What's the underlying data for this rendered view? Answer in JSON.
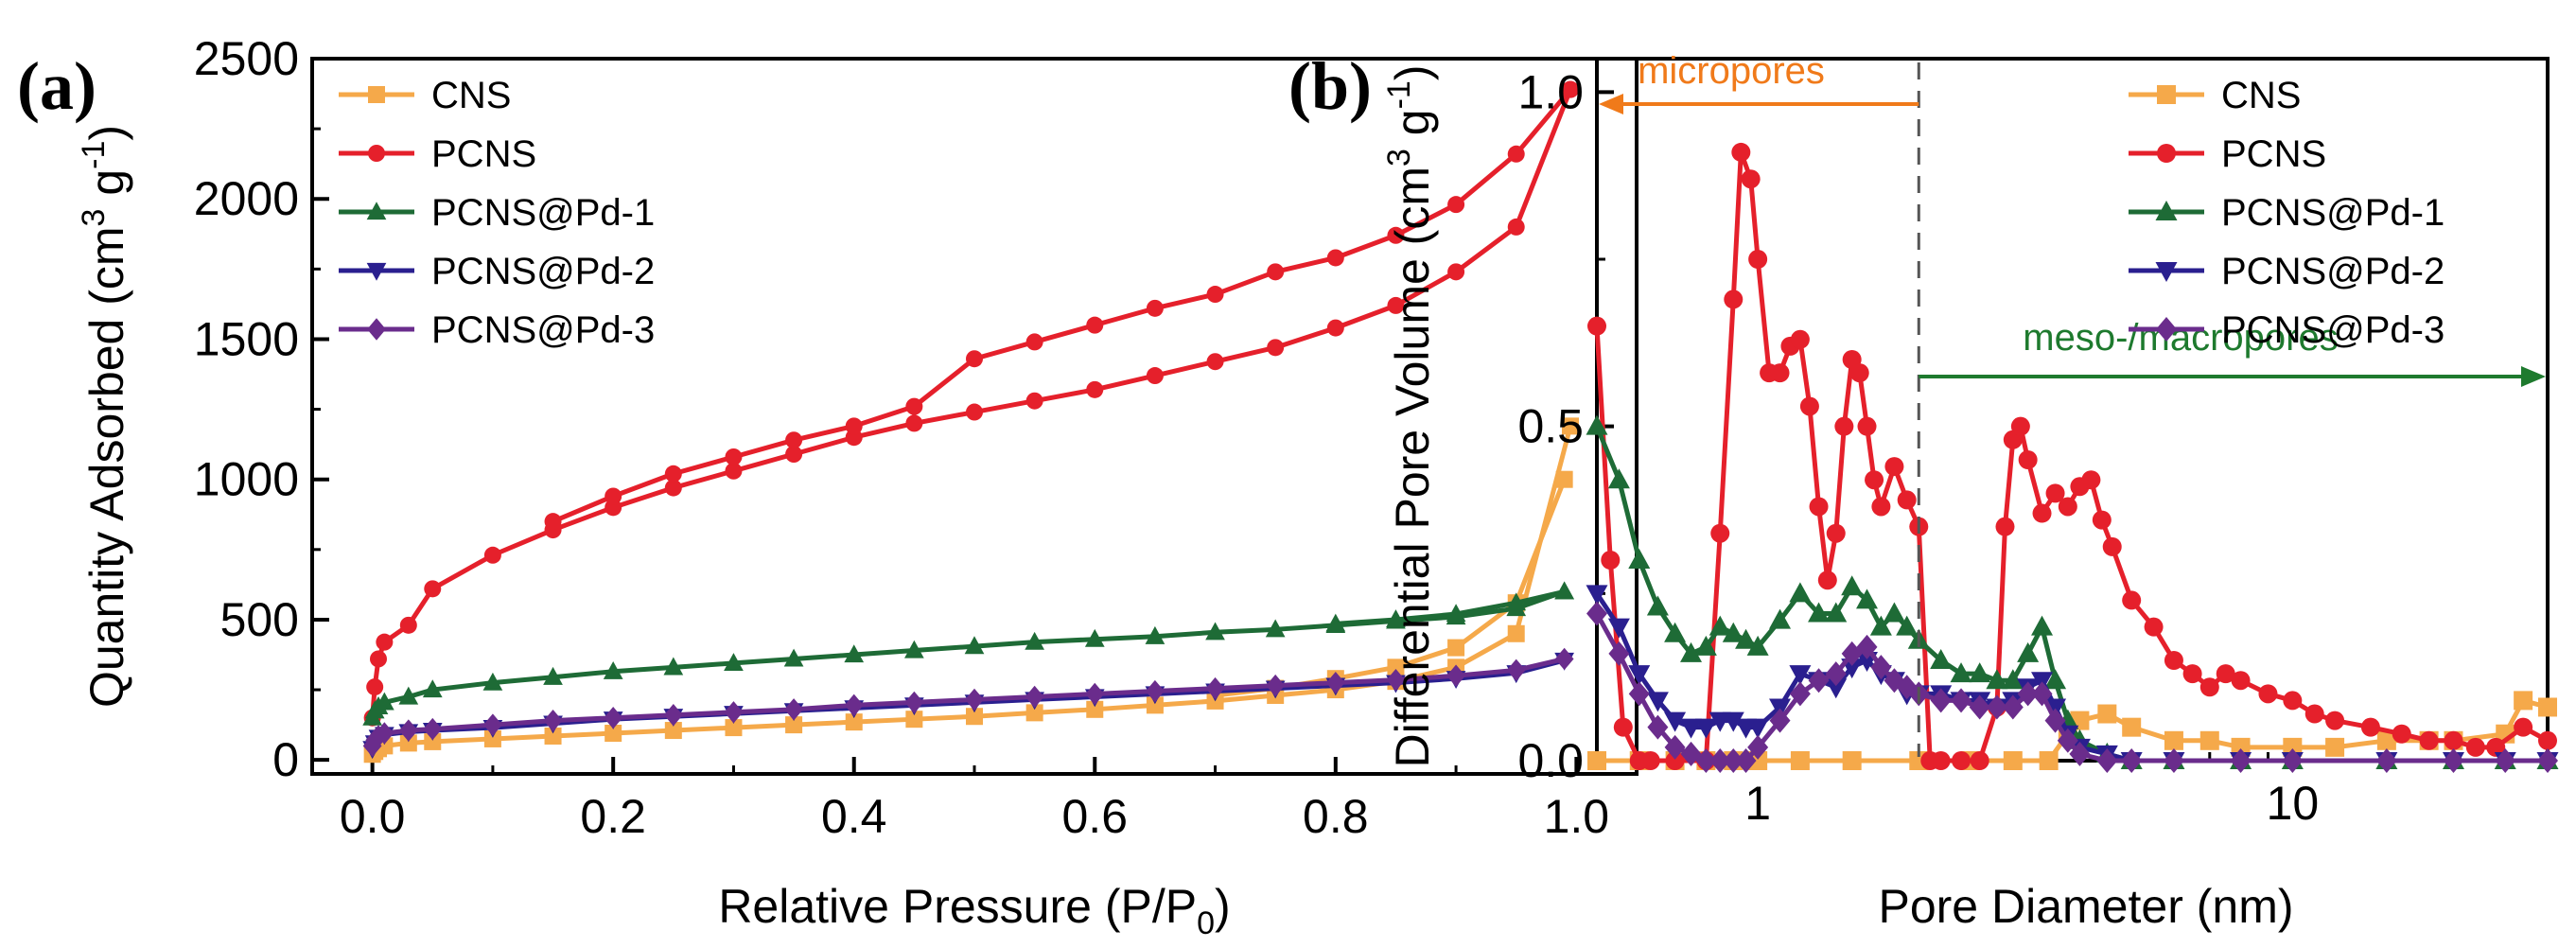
{
  "chart_data": [
    {
      "type": "line",
      "panel_label": "(a)",
      "xlabel": "Relative Pressure (P/P",
      "xlabel_sub": "0",
      "xlabel_end": ")",
      "ylabel": "Quantity Adsorbed (cm",
      "ylabel_sup3": "3",
      "ylabel_g": " g",
      "ylabel_supm1": "-1",
      "ylabel_end": ")",
      "xlim": [
        -0.05,
        1.05
      ],
      "ylim": [
        -50,
        2500
      ],
      "xticks": [
        "0.0",
        "0.2",
        "0.4",
        "0.6",
        "0.8",
        "1.0"
      ],
      "xtick_values": [
        0,
        0.2,
        0.4,
        0.6,
        0.8,
        1.0
      ],
      "yticks": [
        "0",
        "500",
        "1000",
        "1500",
        "2000",
        "2500"
      ],
      "ytick_values": [
        0,
        500,
        1000,
        1500,
        2000,
        2500
      ],
      "legend_position": "top-left",
      "series": [
        {
          "name": "CNS",
          "color": "#f5a94a",
          "marker": "square",
          "x": [
            0.0,
            0.002,
            0.005,
            0.01,
            0.03,
            0.05,
            0.1,
            0.15,
            0.2,
            0.25,
            0.3,
            0.35,
            0.4,
            0.45,
            0.5,
            0.55,
            0.6,
            0.65,
            0.7,
            0.75,
            0.8,
            0.85,
            0.9,
            0.95,
            0.995
          ],
          "y": [
            20,
            30,
            40,
            50,
            60,
            65,
            75,
            85,
            95,
            105,
            115,
            125,
            135,
            145,
            155,
            168,
            180,
            195,
            210,
            230,
            250,
            280,
            330,
            450,
            1190
          ],
          "desorption_x": [
            0.99,
            0.95,
            0.9,
            0.85,
            0.8,
            0.75,
            0.7
          ],
          "desorption_y": [
            1000,
            560,
            400,
            330,
            290,
            255,
            230
          ]
        },
        {
          "name": "PCNS",
          "color": "#e5202b",
          "marker": "circle",
          "x": [
            0.0,
            0.002,
            0.005,
            0.01,
            0.03,
            0.05,
            0.1,
            0.15,
            0.2,
            0.25,
            0.3,
            0.35,
            0.4,
            0.45,
            0.5,
            0.55,
            0.6,
            0.65,
            0.7,
            0.75,
            0.8,
            0.85,
            0.9,
            0.95,
            0.995
          ],
          "y": [
            150,
            260,
            360,
            420,
            480,
            610,
            730,
            820,
            900,
            970,
            1030,
            1090,
            1150,
            1200,
            1240,
            1280,
            1320,
            1370,
            1420,
            1470,
            1540,
            1620,
            1740,
            1900,
            2390
          ],
          "desorption_x": [
            0.995,
            0.95,
            0.9,
            0.85,
            0.8,
            0.75,
            0.7,
            0.65,
            0.6,
            0.55,
            0.5,
            0.45,
            0.4,
            0.35,
            0.3,
            0.25,
            0.2,
            0.15
          ],
          "desorption_y": [
            2390,
            2160,
            1980,
            1870,
            1790,
            1740,
            1660,
            1610,
            1550,
            1490,
            1430,
            1260,
            1190,
            1140,
            1080,
            1020,
            940,
            850
          ]
        },
        {
          "name": "PCNS@Pd-1",
          "color": "#1e6b36",
          "marker": "triangle-up",
          "x": [
            0.0,
            0.002,
            0.005,
            0.01,
            0.03,
            0.05,
            0.1,
            0.15,
            0.2,
            0.25,
            0.3,
            0.35,
            0.4,
            0.45,
            0.5,
            0.55,
            0.6,
            0.65,
            0.7,
            0.75,
            0.8,
            0.85,
            0.9,
            0.95,
            0.99
          ],
          "y": [
            150,
            175,
            190,
            205,
            225,
            250,
            275,
            295,
            315,
            330,
            345,
            360,
            375,
            390,
            405,
            420,
            430,
            440,
            455,
            465,
            480,
            495,
            510,
            540,
            600
          ],
          "desorption_x": [
            0.99,
            0.95,
            0.9,
            0.85,
            0.8
          ],
          "desorption_y": [
            600,
            560,
            520,
            500,
            485
          ]
        },
        {
          "name": "PCNS@Pd-2",
          "color": "#2a1f8f",
          "marker": "triangle-down",
          "x": [
            0.0,
            0.002,
            0.005,
            0.01,
            0.03,
            0.05,
            0.1,
            0.15,
            0.2,
            0.25,
            0.3,
            0.35,
            0.4,
            0.45,
            0.5,
            0.55,
            0.6,
            0.65,
            0.7,
            0.75,
            0.8,
            0.85,
            0.9,
            0.95,
            0.99
          ],
          "y": [
            40,
            60,
            80,
            90,
            100,
            105,
            115,
            130,
            145,
            155,
            165,
            175,
            185,
            195,
            205,
            215,
            225,
            235,
            245,
            255,
            265,
            275,
            290,
            310,
            355
          ],
          "desorption_x": [],
          "desorption_y": []
        },
        {
          "name": "PCNS@Pd-3",
          "color": "#6a2c8c",
          "marker": "diamond",
          "x": [
            0.0,
            0.002,
            0.005,
            0.01,
            0.03,
            0.05,
            0.1,
            0.15,
            0.2,
            0.25,
            0.3,
            0.35,
            0.4,
            0.45,
            0.5,
            0.55,
            0.6,
            0.65,
            0.7,
            0.75,
            0.8,
            0.85,
            0.9,
            0.95,
            0.99
          ],
          "y": [
            50,
            70,
            85,
            95,
            105,
            110,
            125,
            140,
            150,
            160,
            170,
            180,
            195,
            205,
            215,
            225,
            235,
            245,
            255,
            265,
            275,
            285,
            300,
            320,
            360
          ],
          "desorption_x": [],
          "desorption_y": []
        }
      ]
    },
    {
      "type": "line",
      "panel_label": "(b)",
      "xlabel": "Pore Diameter (nm)",
      "ylabel": "Differential Pore Volume (cm",
      "ylabel_sup3": "3",
      "ylabel_g": " g",
      "ylabel_supm1": "-1",
      "ylabel_end": ")",
      "xscale": "log",
      "xlim": [
        0.5,
        30
      ],
      "ylim": [
        0,
        1.05
      ],
      "xticks": [
        "1",
        "10"
      ],
      "xtick_values": [
        1,
        10
      ],
      "yticks": [
        "0.0",
        "0.5",
        "1.0"
      ],
      "ytick_values": [
        0,
        0.5,
        1.0
      ],
      "legend_position": "top-right",
      "divider_x": 2,
      "annotations": [
        {
          "text": "micropores",
          "color": "#f07a1a",
          "direction": "left"
        },
        {
          "text": "meso-/macropores",
          "color": "#1e7a2e",
          "direction": "right"
        }
      ],
      "series": [
        {
          "name": "CNS",
          "color": "#f5a94a",
          "marker": "square",
          "x": [
            0.5,
            0.6,
            0.7,
            0.8,
            0.9,
            1.0,
            1.2,
            1.5,
            2.0,
            2.5,
            3.0,
            3.5,
            3.8,
            4.0,
            4.5,
            5.0,
            6.0,
            7.0,
            8.0,
            10.0,
            12.0,
            15.0,
            18.0,
            20.0,
            25.0,
            27.0,
            30.0
          ],
          "y": [
            0.0,
            0.0,
            0.0,
            0.0,
            0.0,
            0.0,
            0.0,
            0.0,
            0.0,
            0.0,
            0.0,
            0.0,
            0.04,
            0.06,
            0.07,
            0.05,
            0.03,
            0.03,
            0.02,
            0.02,
            0.02,
            0.03,
            0.03,
            0.03,
            0.04,
            0.09,
            0.08
          ]
        },
        {
          "name": "PCNS",
          "color": "#e5202b",
          "marker": "circle",
          "x": [
            0.5,
            0.53,
            0.56,
            0.6,
            0.63,
            0.7,
            0.8,
            0.85,
            0.9,
            0.93,
            0.97,
            1.0,
            1.05,
            1.1,
            1.15,
            1.2,
            1.25,
            1.3,
            1.35,
            1.4,
            1.45,
            1.5,
            1.55,
            1.6,
            1.65,
            1.7,
            1.8,
            1.9,
            2.0,
            2.1,
            2.2,
            2.4,
            2.6,
            2.8,
            2.9,
            3.0,
            3.1,
            3.2,
            3.4,
            3.6,
            3.8,
            4.0,
            4.2,
            4.4,
            4.6,
            5.0,
            5.5,
            6.0,
            6.5,
            7.0,
            7.5,
            8.0,
            9.0,
            10.0,
            11.0,
            12.0,
            14.0,
            16.0,
            18.0,
            20.0,
            22.0,
            24.0,
            27.0,
            30.0
          ],
          "y": [
            0.65,
            0.3,
            0.05,
            0.0,
            0.0,
            0.0,
            0.0,
            0.34,
            0.69,
            0.91,
            0.87,
            0.75,
            0.58,
            0.58,
            0.62,
            0.63,
            0.53,
            0.38,
            0.27,
            0.34,
            0.5,
            0.6,
            0.58,
            0.5,
            0.42,
            0.38,
            0.44,
            0.39,
            0.35,
            0.0,
            0.0,
            0.0,
            0.0,
            0.08,
            0.35,
            0.48,
            0.5,
            0.45,
            0.37,
            0.4,
            0.38,
            0.41,
            0.42,
            0.36,
            0.32,
            0.24,
            0.2,
            0.15,
            0.13,
            0.11,
            0.13,
            0.12,
            0.1,
            0.09,
            0.07,
            0.06,
            0.05,
            0.04,
            0.03,
            0.03,
            0.02,
            0.02,
            0.05,
            0.03
          ]
        },
        {
          "name": "PCNS@Pd-1",
          "color": "#1e6b36",
          "marker": "triangle-up",
          "x": [
            0.5,
            0.55,
            0.6,
            0.65,
            0.7,
            0.75,
            0.8,
            0.85,
            0.9,
            0.95,
            1.0,
            1.1,
            1.2,
            1.3,
            1.4,
            1.5,
            1.6,
            1.7,
            1.8,
            1.9,
            2.0,
            2.2,
            2.4,
            2.6,
            2.8,
            3.0,
            3.2,
            3.4,
            3.6,
            3.8,
            4.0,
            4.5,
            5.0,
            6.0,
            8.0,
            10.0,
            15.0,
            20.0,
            25.0,
            30.0
          ],
          "y": [
            0.5,
            0.42,
            0.3,
            0.23,
            0.19,
            0.16,
            0.17,
            0.2,
            0.19,
            0.18,
            0.17,
            0.21,
            0.25,
            0.22,
            0.22,
            0.26,
            0.24,
            0.2,
            0.22,
            0.2,
            0.18,
            0.15,
            0.13,
            0.13,
            0.12,
            0.12,
            0.16,
            0.2,
            0.12,
            0.06,
            0.03,
            0.01,
            0.0,
            0.0,
            0.0,
            0.0,
            0.0,
            0.0,
            0.0,
            0.0
          ]
        },
        {
          "name": "PCNS@Pd-2",
          "color": "#2a1f8f",
          "marker": "triangle-down",
          "x": [
            0.5,
            0.55,
            0.6,
            0.65,
            0.7,
            0.75,
            0.8,
            0.85,
            0.9,
            0.95,
            1.0,
            1.1,
            1.2,
            1.3,
            1.4,
            1.5,
            1.6,
            1.7,
            1.8,
            1.9,
            2.0,
            2.2,
            2.4,
            2.6,
            2.8,
            3.0,
            3.2,
            3.4,
            3.6,
            3.8,
            4.0,
            4.5,
            5.0,
            6.0,
            8.0,
            10.0,
            15.0,
            20.0,
            25.0,
            30.0
          ],
          "y": [
            0.25,
            0.2,
            0.13,
            0.09,
            0.06,
            0.05,
            0.05,
            0.06,
            0.06,
            0.05,
            0.05,
            0.08,
            0.13,
            0.12,
            0.11,
            0.14,
            0.15,
            0.13,
            0.12,
            0.1,
            0.1,
            0.1,
            0.09,
            0.09,
            0.08,
            0.09,
            0.11,
            0.12,
            0.08,
            0.04,
            0.02,
            0.01,
            0.0,
            0.0,
            0.0,
            0.0,
            0.0,
            0.0,
            0.0,
            0.0
          ]
        },
        {
          "name": "PCNS@Pd-3",
          "color": "#6a2c8c",
          "marker": "diamond",
          "x": [
            0.5,
            0.55,
            0.6,
            0.65,
            0.7,
            0.75,
            0.8,
            0.85,
            0.9,
            0.95,
            1.0,
            1.1,
            1.2,
            1.3,
            1.4,
            1.5,
            1.6,
            1.7,
            1.8,
            1.9,
            2.0,
            2.2,
            2.4,
            2.6,
            2.8,
            3.0,
            3.2,
            3.4,
            3.6,
            3.8,
            4.0,
            4.5,
            5.0,
            6.0,
            8.0,
            10.0,
            15.0,
            20.0,
            25.0,
            30.0
          ],
          "y": [
            0.22,
            0.16,
            0.1,
            0.05,
            0.02,
            0.01,
            0.0,
            0.0,
            0.0,
            0.0,
            0.02,
            0.06,
            0.1,
            0.12,
            0.13,
            0.16,
            0.17,
            0.14,
            0.12,
            0.11,
            0.1,
            0.09,
            0.09,
            0.08,
            0.08,
            0.08,
            0.1,
            0.1,
            0.06,
            0.03,
            0.01,
            0.0,
            0.0,
            0.0,
            0.0,
            0.0,
            0.0,
            0.0,
            0.0,
            0.0
          ]
        }
      ]
    }
  ]
}
